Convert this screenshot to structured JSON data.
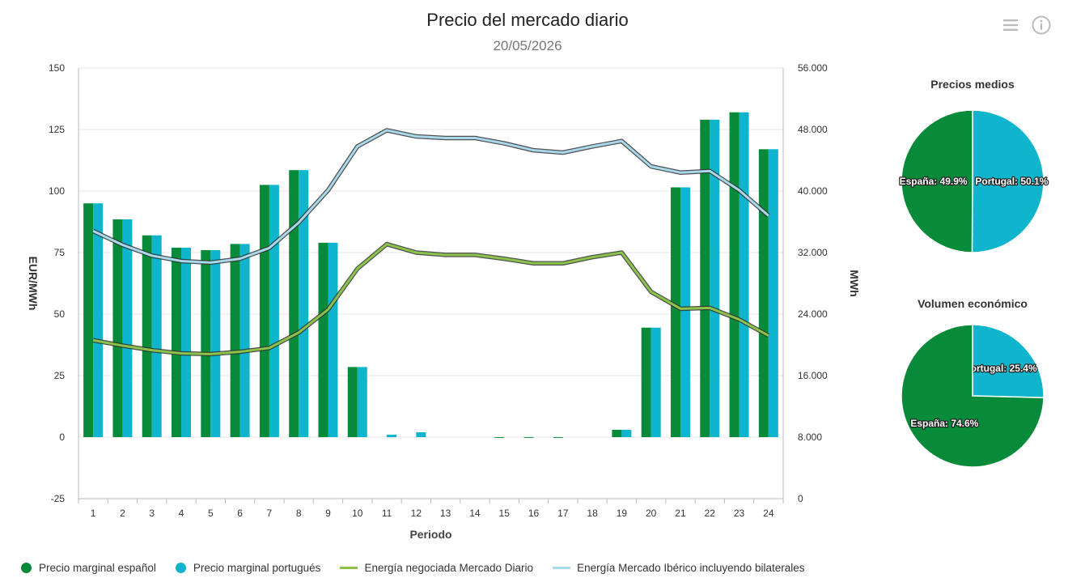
{
  "header": {
    "title": "Precio del mercado diario",
    "subtitle": "20/05/2026",
    "menu_icon": "hamburger-menu-icon",
    "info_icon": "info-icon"
  },
  "colors": {
    "spain": "#078A3A",
    "portugal": "#0FB5CC",
    "energy_daily": "#8BC34A",
    "energy_iberian": "#A8D8EA",
    "grid": "#e6e6e6"
  },
  "chart_data": [
    {
      "type": "bar",
      "xlabel": "Periodo",
      "ylabel": "EUR/MWh",
      "y2label": "MWh",
      "categories": [
        "1",
        "2",
        "3",
        "4",
        "5",
        "6",
        "7",
        "8",
        "9",
        "10",
        "11",
        "12",
        "13",
        "14",
        "15",
        "16",
        "17",
        "18",
        "19",
        "20",
        "21",
        "22",
        "23",
        "24"
      ],
      "ylim": [
        -25,
        150
      ],
      "yticks": [
        "150",
        "125",
        "100",
        "75",
        "50",
        "25",
        "0",
        "-25"
      ],
      "y2lim": [
        0,
        56000
      ],
      "y2ticks": [
        "56.000",
        "48.000",
        "40.000",
        "32.000",
        "24.000",
        "16.000",
        "8.000",
        "0"
      ],
      "grid": true,
      "legend_position": "bottom",
      "series": [
        {
          "name": "Precio marginal español",
          "type": "bar",
          "axis": "left",
          "values": [
            95,
            88.5,
            82,
            77,
            76,
            78.5,
            102.5,
            108.5,
            79,
            28.5,
            0,
            0,
            0,
            0,
            -0.3,
            -0.3,
            -0.3,
            0,
            3,
            44.5,
            101.5,
            129,
            132,
            117
          ]
        },
        {
          "name": "Precio marginal portugués",
          "type": "bar",
          "axis": "left",
          "values": [
            95,
            88.5,
            82,
            77,
            76,
            78.5,
            102.5,
            108.5,
            79,
            28.5,
            1,
            2,
            0,
            0,
            0,
            0,
            0,
            0,
            3,
            44.5,
            101.5,
            129,
            132,
            117
          ]
        },
        {
          "name": "Energía negociada Mercado Diario",
          "type": "line",
          "axis": "right",
          "values": [
            20600,
            19900,
            19300,
            18900,
            18800,
            19100,
            19600,
            21600,
            24600,
            29900,
            33100,
            32000,
            31700,
            31700,
            31200,
            30600,
            30600,
            31400,
            32000,
            26900,
            24700,
            24800,
            23300,
            21200
          ]
        },
        {
          "name": "Energía Mercado Ibérico incluyendo bilaterales",
          "type": "line",
          "axis": "right",
          "values": [
            34800,
            33000,
            31600,
            30900,
            30700,
            31200,
            32600,
            35900,
            40100,
            45800,
            47900,
            47100,
            46900,
            46900,
            46200,
            45300,
            45000,
            45800,
            46500,
            43200,
            42400,
            42600,
            40100,
            36800
          ]
        }
      ]
    },
    {
      "type": "pie",
      "title": "Precios medios",
      "slices": [
        {
          "label": "Portugal: 50.1%",
          "name": "Portugal",
          "value": 50.1
        },
        {
          "label": "España: 49.9%",
          "name": "España",
          "value": 49.9
        }
      ]
    },
    {
      "type": "pie",
      "title": "Volumen económico",
      "slices": [
        {
          "label": "Portugal: 25.4%",
          "name": "Portugal",
          "value": 25.4
        },
        {
          "label": "España: 74.6%",
          "name": "España",
          "value": 74.6
        }
      ]
    }
  ],
  "legend": [
    {
      "label": "Precio marginal español",
      "symbol": "dot",
      "color": "#078A3A"
    },
    {
      "label": "Precio marginal portugués",
      "symbol": "dot",
      "color": "#0FB5CC"
    },
    {
      "label": "Energía negociada Mercado Diario",
      "symbol": "line",
      "color": "#8BC34A"
    },
    {
      "label": "Energía Mercado Ibérico incluyendo bilaterales",
      "symbol": "line",
      "color": "#A8D8EA"
    }
  ]
}
